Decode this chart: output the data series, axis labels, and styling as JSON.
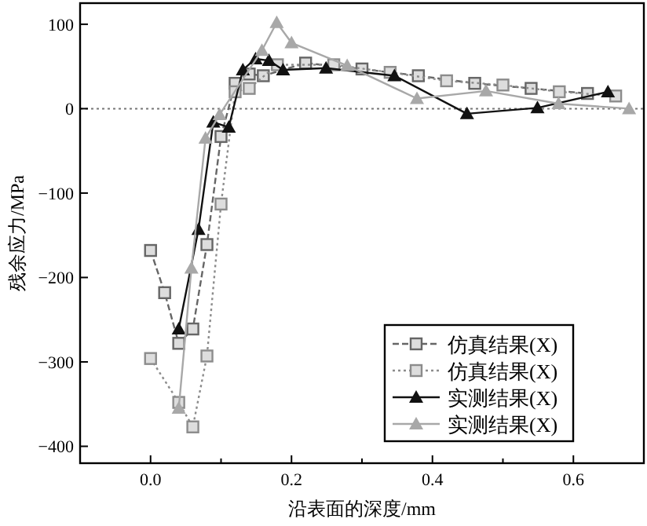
{
  "chart_data": {
    "type": "line",
    "xlabel": "沿表面的深度/mm",
    "ylabel": "残余应力/MPa",
    "xlim": [
      -0.1,
      0.7
    ],
    "ylim": [
      -420,
      125
    ],
    "xticks": [
      {
        "value": 0,
        "label": "0.0"
      },
      {
        "value": 0.1,
        "label": null
      },
      0.2,
      {
        "value": 0.3,
        "label": null
      },
      0.4,
      {
        "value": 0.5,
        "label": null
      },
      0.6
    ],
    "yticks": [
      -400,
      -300,
      -200,
      -100,
      0,
      100
    ],
    "grid": false,
    "legend": "bottom right",
    "ref_lines": [
      {
        "axis": "y",
        "value": 0,
        "color": "#777777",
        "line_style": "dotted"
      }
    ],
    "series": [
      {
        "name": "仿真结果(X)",
        "color": "#666666",
        "marker": "square",
        "line_style": "dashed",
        "x": [
          0,
          0.02,
          0.04,
          0.06,
          0.08,
          0.1,
          0.12,
          0.14,
          0.16,
          0.22,
          0.3,
          0.38,
          0.46,
          0.54,
          0.62
        ],
        "values": [
          -168,
          -218,
          -278,
          -261,
          -161,
          -33,
          30,
          41,
          39,
          54,
          47,
          39,
          30,
          24,
          18
        ]
      },
      {
        "name": "仿真结果(X)",
        "color": "#8c8c8c",
        "marker": "square",
        "line_style": "dotted",
        "x": [
          0,
          0.04,
          0.06,
          0.08,
          0.1,
          0.12,
          0.14,
          0.18,
          0.26,
          0.34,
          0.42,
          0.5,
          0.58,
          0.66
        ],
        "values": [
          -296,
          -348,
          -377,
          -293,
          -113,
          20,
          24,
          52,
          52,
          43,
          33,
          28,
          20,
          15
        ]
      },
      {
        "name": "实测结果(X)",
        "color": "#111111",
        "marker": "triangle",
        "line_style": "solid",
        "x": [
          0.04,
          0.068,
          0.089,
          0.111,
          0.131,
          0.149,
          0.168,
          0.188,
          0.249,
          0.346,
          0.449,
          0.549,
          0.649
        ],
        "values": [
          -261,
          -143,
          -16,
          -22,
          46,
          59,
          57,
          46,
          48,
          39,
          -6,
          1,
          20
        ]
      },
      {
        "name": "实测结果(X)",
        "color": "#a8a8a8",
        "marker": "triangle",
        "line_style": "solid",
        "x": [
          0.04,
          0.058,
          0.078,
          0.098,
          0.158,
          0.179,
          0.2,
          0.279,
          0.378,
          0.476,
          0.579,
          0.679
        ],
        "values": [
          -355,
          -189,
          -35,
          -7,
          69,
          102,
          78,
          51,
          12,
          21,
          6,
          0
        ]
      }
    ]
  }
}
